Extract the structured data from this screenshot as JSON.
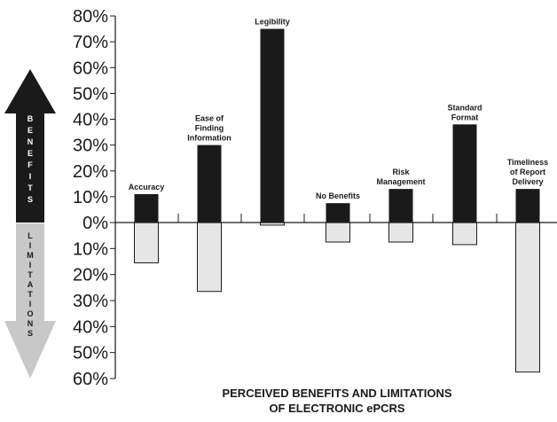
{
  "chart_data": {
    "type": "bar",
    "title": "PERCEIVED BENEFITS AND LIMITATIONS OF ELECTRONIC ePCRS",
    "title_lines": [
      "PERCEIVED BENEFITS AND LIMITATIONS",
      "OF ELECTRONIC ePCRS"
    ],
    "categories": [
      [
        "Accuracy"
      ],
      [
        "Ease of",
        "Finding",
        "Information"
      ],
      [
        "Legibility"
      ],
      [
        "No Benefits"
      ],
      [
        "Risk",
        "Management"
      ],
      [
        "Standard",
        "Format"
      ],
      [
        "Timeliness",
        "of Report",
        "Delivery"
      ]
    ],
    "series": [
      {
        "name": "Benefits",
        "values": [
          11,
          30,
          75,
          7.5,
          13,
          38,
          13
        ]
      },
      {
        "name": "Limitations",
        "values": [
          15.5,
          26.5,
          1,
          7.5,
          7.5,
          8.5,
          57.5
        ]
      }
    ],
    "yticks_upper": [
      "80%",
      "70%",
      "60%",
      "50%",
      "40%",
      "30%",
      "20%",
      "10%",
      "0%"
    ],
    "yticks_lower": [
      "10%",
      "20%",
      "30%",
      "40%",
      "50%",
      "60%"
    ],
    "ylim_benefits": [
      0,
      80
    ],
    "ylim_limitations": [
      0,
      60
    ],
    "arrow_benefits_label": "BENEFITS",
    "arrow_limitations_label": "LIMITATIONS",
    "colors": {
      "benefit": "#1a1a1a",
      "limitation": "#e6e6e6",
      "arrow_up": "#1a1a1a",
      "arrow_down": "#c8c8c8"
    }
  }
}
